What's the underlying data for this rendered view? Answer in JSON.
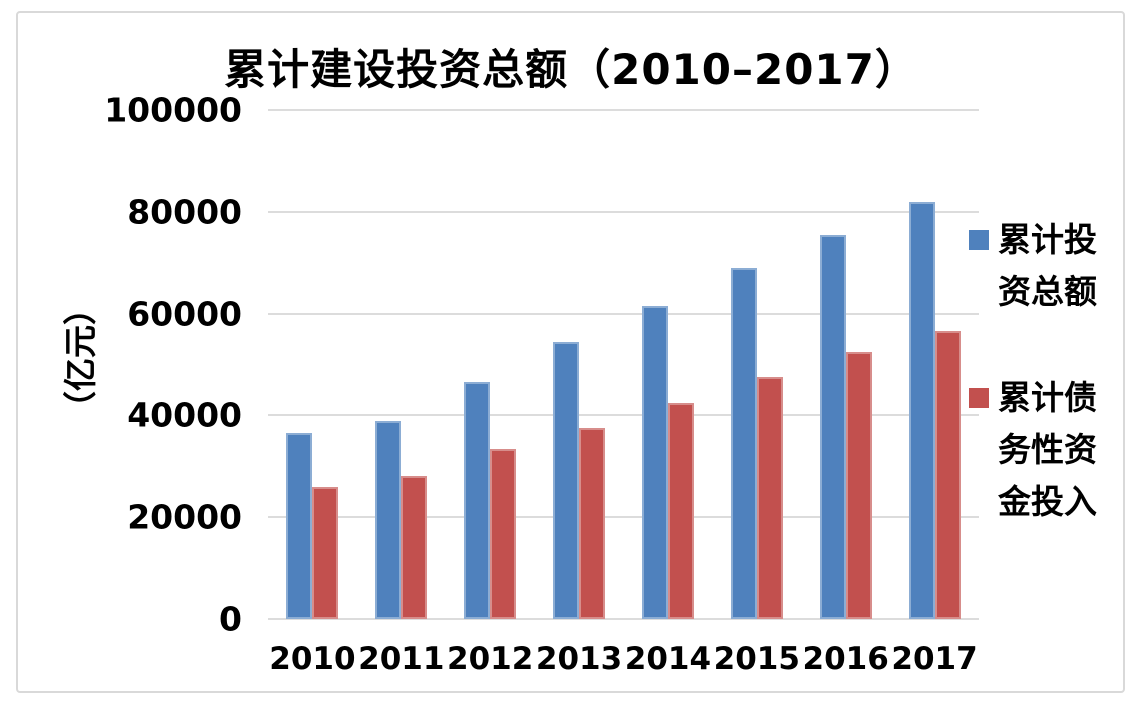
{
  "chart_data": {
    "type": "bar",
    "title": "累计建设投资总额（2010–2017）",
    "ylabel": "（亿元）",
    "xlabel": "",
    "categories": [
      "2010",
      "2011",
      "2012",
      "2013",
      "2014",
      "2015",
      "2016",
      "2017"
    ],
    "series": [
      {
        "name": "累计投资总额",
        "color": "#4F81BD",
        "values": [
          36500,
          39000,
          46500,
          54500,
          61500,
          69000,
          75500,
          82000
        ]
      },
      {
        "name": "累计债务性资金投入",
        "color": "#C2504E",
        "values": [
          26000,
          28000,
          33500,
          37500,
          42500,
          47500,
          52500,
          56500
        ]
      }
    ],
    "ylim": [
      0,
      100000
    ],
    "yticks": [
      0,
      20000,
      40000,
      60000,
      80000,
      100000
    ],
    "grid": true,
    "legend_position": "right"
  },
  "colors": {
    "series_blue": "#4F81BD",
    "series_red": "#C2504E",
    "gridline": "#DCDCDC",
    "canvas_border": "#D9D9D9",
    "text": "#000000",
    "background": "#FFFFFF"
  }
}
